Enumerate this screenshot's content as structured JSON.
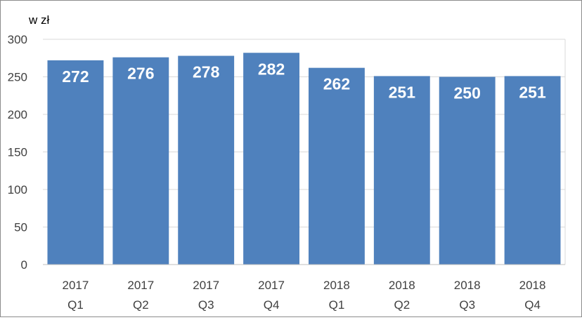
{
  "chart_data": {
    "type": "bar",
    "unit_label": "w  zł",
    "categories": [
      [
        "2017",
        "Q1"
      ],
      [
        "2017",
        "Q2"
      ],
      [
        "2017",
        "Q3"
      ],
      [
        "2017",
        "Q4"
      ],
      [
        "2018",
        "Q1"
      ],
      [
        "2018",
        "Q2"
      ],
      [
        "2018",
        "Q3"
      ],
      [
        "2018",
        "Q4"
      ]
    ],
    "values": [
      272,
      276,
      278,
      282,
      262,
      251,
      250,
      251
    ],
    "ylim": [
      0,
      300
    ],
    "yticks": [
      0,
      50,
      100,
      150,
      200,
      250,
      300
    ],
    "grid": true,
    "colors": {
      "bar": "#4f81bd",
      "grid": "#d9d9d9",
      "axis": "#bfbfbf",
      "label": "#ffffff"
    }
  }
}
